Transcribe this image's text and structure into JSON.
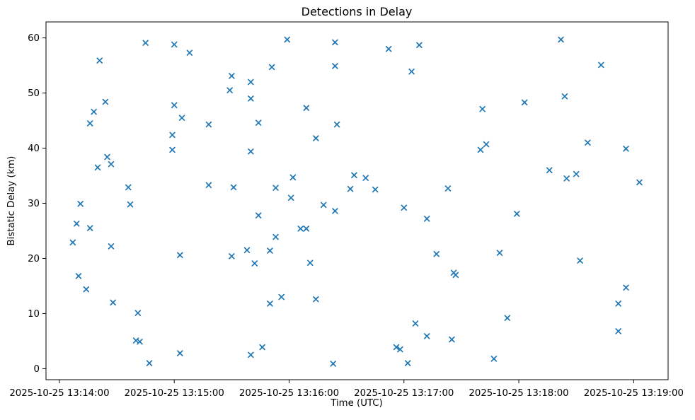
{
  "chart_data": {
    "type": "scatter",
    "title": "Detections in Delay",
    "xlabel": "Time (UTC)",
    "ylabel": "Bistatic Delay (km)",
    "legend_position": "none",
    "grid": false,
    "marker": "x",
    "marker_color": "#1f77b4",
    "axis_color": "#000000",
    "background_color": "#ffffff",
    "x_unit": "seconds after 2025-10-25 13:14:00 UTC",
    "xlim_seconds": [
      -7,
      318
    ],
    "ylim": [
      -2,
      62.9
    ],
    "y_ticks": [
      0,
      10,
      20,
      30,
      40,
      50,
      60
    ],
    "x_ticks": [
      {
        "seconds": 0,
        "label": "2025-10-25 13:14:00"
      },
      {
        "seconds": 60,
        "label": "2025-10-25 13:15:00"
      },
      {
        "seconds": 120,
        "label": "2025-10-25 13:16:00"
      },
      {
        "seconds": 180,
        "label": "2025-10-25 13:17:00"
      },
      {
        "seconds": 240,
        "label": "2025-10-25 13:18:00"
      },
      {
        "seconds": 300,
        "label": "2025-10-25 13:19:00"
      }
    ],
    "points": [
      [
        7,
        22.9
      ],
      [
        9,
        26.3
      ],
      [
        10,
        16.8
      ],
      [
        11,
        29.9
      ],
      [
        14,
        14.4
      ],
      [
        16,
        44.5
      ],
      [
        16,
        25.5
      ],
      [
        18,
        46.6
      ],
      [
        20,
        36.5
      ],
      [
        21,
        55.9
      ],
      [
        24,
        48.4
      ],
      [
        25,
        38.4
      ],
      [
        27,
        37.1
      ],
      [
        27,
        22.2
      ],
      [
        28,
        12.0
      ],
      [
        36,
        32.9
      ],
      [
        37,
        29.8
      ],
      [
        40,
        5.1
      ],
      [
        41,
        10.1
      ],
      [
        42,
        4.9
      ],
      [
        45,
        59.1
      ],
      [
        47,
        1.0
      ],
      [
        59,
        42.4
      ],
      [
        59,
        39.7
      ],
      [
        60,
        58.8
      ],
      [
        60,
        47.8
      ],
      [
        63,
        20.6
      ],
      [
        63,
        2.8
      ],
      [
        64,
        45.5
      ],
      [
        68,
        57.3
      ],
      [
        78,
        44.3
      ],
      [
        78,
        33.3
      ],
      [
        89,
        50.5
      ],
      [
        90,
        53.1
      ],
      [
        90,
        20.4
      ],
      [
        91,
        32.9
      ],
      [
        98,
        21.5
      ],
      [
        100,
        52.0
      ],
      [
        100,
        49.0
      ],
      [
        100,
        39.4
      ],
      [
        100,
        2.5
      ],
      [
        102,
        19.1
      ],
      [
        104,
        27.8
      ],
      [
        104,
        44.6
      ],
      [
        106,
        3.9
      ],
      [
        110,
        21.4
      ],
      [
        110,
        11.8
      ],
      [
        111,
        54.7
      ],
      [
        113,
        32.8
      ],
      [
        113,
        23.9
      ],
      [
        116,
        13.0
      ],
      [
        119,
        59.7
      ],
      [
        121,
        31.0
      ],
      [
        122,
        34.7
      ],
      [
        126,
        25.4
      ],
      [
        129,
        25.4
      ],
      [
        129,
        47.3
      ],
      [
        131,
        19.2
      ],
      [
        134,
        41.8
      ],
      [
        134,
        12.6
      ],
      [
        138,
        29.7
      ],
      [
        143,
        0.9
      ],
      [
        144,
        59.2
      ],
      [
        144,
        54.9
      ],
      [
        144,
        28.6
      ],
      [
        145,
        44.3
      ],
      [
        152,
        32.6
      ],
      [
        154,
        35.1
      ],
      [
        160,
        34.6
      ],
      [
        165,
        32.5
      ],
      [
        172,
        58.0
      ],
      [
        176,
        3.9
      ],
      [
        178,
        3.5
      ],
      [
        180,
        29.2
      ],
      [
        182,
        1.0
      ],
      [
        184,
        53.9
      ],
      [
        186,
        8.2
      ],
      [
        188,
        58.7
      ],
      [
        192,
        27.2
      ],
      [
        192,
        5.9
      ],
      [
        197,
        20.8
      ],
      [
        203,
        32.7
      ],
      [
        205,
        5.3
      ],
      [
        206,
        17.4
      ],
      [
        207,
        17.0
      ],
      [
        220,
        39.7
      ],
      [
        221,
        47.1
      ],
      [
        223,
        40.7
      ],
      [
        227,
        1.8
      ],
      [
        230,
        21.0
      ],
      [
        234,
        9.2
      ],
      [
        239,
        28.1
      ],
      [
        243,
        48.3
      ],
      [
        256,
        36.0
      ],
      [
        262,
        59.7
      ],
      [
        264,
        49.4
      ],
      [
        265,
        34.5
      ],
      [
        270,
        35.3
      ],
      [
        272,
        19.6
      ],
      [
        276,
        41.0
      ],
      [
        283,
        55.1
      ],
      [
        292,
        11.8
      ],
      [
        292,
        6.8
      ],
      [
        296,
        39.9
      ],
      [
        296,
        14.7
      ],
      [
        303,
        33.8
      ]
    ]
  }
}
